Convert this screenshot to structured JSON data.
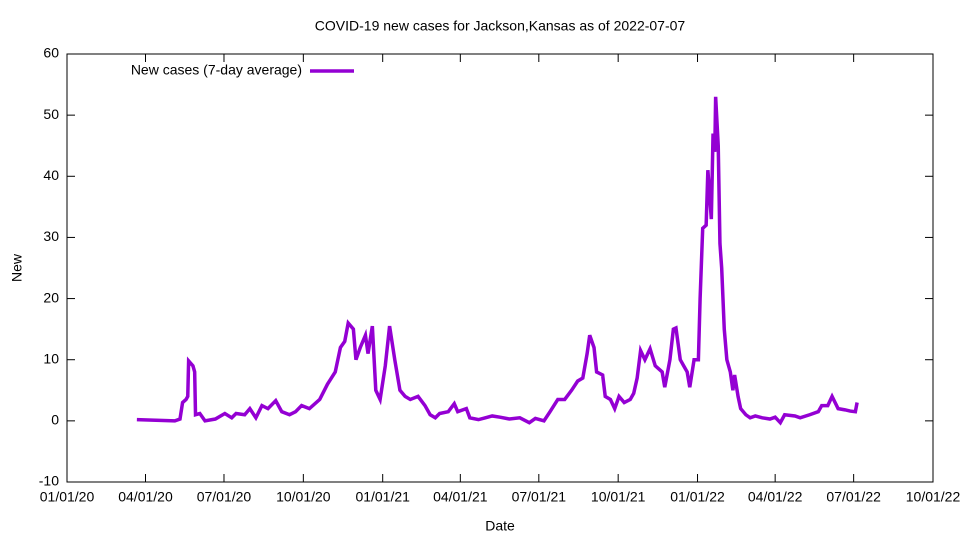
{
  "chart_data": {
    "type": "line",
    "title": "COVID-19 new cases for Jackson,Kansas as of 2022-07-07",
    "x_label": "Date",
    "y_label": "New",
    "legend": "top-left",
    "xlim": [
      "2020-01-01",
      "2022-10-01"
    ],
    "xticks": [
      {
        "value": "2020-01-01",
        "label": "01/01/20"
      },
      {
        "value": "2020-04-01",
        "label": "04/01/20"
      },
      {
        "value": "2020-07-01",
        "label": "07/01/20"
      },
      {
        "value": "2020-10-01",
        "label": "10/01/20"
      },
      {
        "value": "2021-01-01",
        "label": "01/01/21"
      },
      {
        "value": "2021-04-01",
        "label": "04/01/21"
      },
      {
        "value": "2021-07-01",
        "label": "07/01/21"
      },
      {
        "value": "2021-10-01",
        "label": "10/01/21"
      },
      {
        "value": "2022-01-01",
        "label": "01/01/22"
      },
      {
        "value": "2022-04-01",
        "label": "04/01/22"
      },
      {
        "value": "2022-07-01",
        "label": "07/01/22"
      },
      {
        "value": "2022-10-01",
        "label": "10/01/22"
      }
    ],
    "ylim": [
      -10,
      60
    ],
    "yticks": [
      -10,
      0,
      10,
      20,
      30,
      40,
      50,
      60
    ],
    "x": [
      "2020-03-22",
      "2020-05-05",
      "2020-05-11",
      "2020-05-14",
      "2020-05-18",
      "2020-05-20",
      "2020-05-21",
      "2020-05-26",
      "2020-05-28",
      "2020-05-29",
      "2020-06-03",
      "2020-06-09",
      "2020-06-21",
      "2020-07-02",
      "2020-07-10",
      "2020-07-15",
      "2020-07-25",
      "2020-07-31",
      "2020-08-07",
      "2020-08-14",
      "2020-08-21",
      "2020-08-30",
      "2020-09-06",
      "2020-09-15",
      "2020-09-22",
      "2020-09-29",
      "2020-10-08",
      "2020-10-20",
      "2020-10-29",
      "2020-11-07",
      "2020-11-13",
      "2020-11-18",
      "2020-11-22",
      "2020-11-28",
      "2020-12-01",
      "2020-12-06",
      "2020-12-12",
      "2020-12-15",
      "2020-12-20",
      "2020-12-24",
      "2020-12-29",
      "2021-01-04",
      "2021-01-09",
      "2021-01-15",
      "2021-01-21",
      "2021-01-27",
      "2021-02-02",
      "2021-02-11",
      "2021-02-19",
      "2021-02-25",
      "2021-03-03",
      "2021-03-08",
      "2021-03-18",
      "2021-03-25",
      "2021-03-29",
      "2021-04-08",
      "2021-04-12",
      "2021-04-22",
      "2021-04-30",
      "2021-05-08",
      "2021-05-17",
      "2021-05-28",
      "2021-06-09",
      "2021-06-20",
      "2021-06-27",
      "2021-07-07",
      "2021-07-14",
      "2021-07-23",
      "2021-07-31",
      "2021-08-08",
      "2021-08-15",
      "2021-08-21",
      "2021-08-26",
      "2021-08-29",
      "2021-09-03",
      "2021-09-06",
      "2021-09-13",
      "2021-09-16",
      "2021-09-22",
      "2021-09-27",
      "2021-10-02",
      "2021-10-08",
      "2021-10-15",
      "2021-10-19",
      "2021-10-23",
      "2021-10-27",
      "2021-11-01",
      "2021-11-07",
      "2021-11-13",
      "2021-11-21",
      "2021-11-24",
      "2021-11-30",
      "2021-12-04",
      "2021-12-07",
      "2021-12-12",
      "2021-12-16",
      "2021-12-20",
      "2021-12-23",
      "2021-12-28",
      "2022-01-02",
      "2022-01-04",
      "2022-01-07",
      "2022-01-11",
      "2022-01-13",
      "2022-01-17",
      "2022-01-19",
      "2022-01-21",
      "2022-01-22",
      "2022-01-25",
      "2022-01-27",
      "2022-01-29",
      "2022-02-01",
      "2022-02-04",
      "2022-02-08",
      "2022-02-11",
      "2022-02-13",
      "2022-02-17",
      "2022-02-20",
      "2022-02-26",
      "2022-03-03",
      "2022-03-09",
      "2022-03-17",
      "2022-03-26",
      "2022-04-01",
      "2022-04-07",
      "2022-04-12",
      "2022-04-24",
      "2022-04-30",
      "2022-05-11",
      "2022-05-21",
      "2022-05-25",
      "2022-06-01",
      "2022-06-06",
      "2022-06-13",
      "2022-06-21",
      "2022-06-27",
      "2022-07-03",
      "2022-07-05"
    ],
    "series": [
      {
        "name": "New cases (7-day average)",
        "color": "#9400d3",
        "values": [
          0.2,
          0,
          0.3,
          3,
          3.5,
          4,
          9.8,
          9,
          8,
          1,
          1.2,
          0,
          0.3,
          1.2,
          0.5,
          1.2,
          1,
          2,
          0.5,
          2.5,
          2,
          3.3,
          1.5,
          1,
          1.5,
          2.5,
          2,
          3.5,
          6,
          8,
          12,
          13,
          16,
          15,
          10,
          12,
          14,
          11,
          15.5,
          5,
          3.5,
          9,
          15.5,
          10,
          5,
          4,
          3.5,
          4,
          2.5,
          1,
          0.5,
          1.2,
          1.5,
          2.8,
          1.5,
          2,
          0.5,
          0.2,
          0.5,
          0.8,
          0.6,
          0.3,
          0.5,
          -0.3,
          0.4,
          0,
          1.5,
          3.5,
          3.5,
          5,
          6.5,
          7,
          11,
          14,
          12,
          8,
          7.5,
          4,
          3.5,
          2,
          4,
          3,
          3.5,
          4.5,
          7,
          11.5,
          10,
          11.8,
          9,
          8,
          5.5,
          10,
          15,
          15.2,
          10,
          9,
          8,
          5.5,
          10,
          10,
          20,
          31.5,
          32,
          41,
          33,
          47,
          44,
          53,
          45,
          29,
          25,
          15,
          10,
          8,
          5,
          7.5,
          4,
          2,
          1,
          0.5,
          0.8,
          0.5,
          0.3,
          0.6,
          -0.3,
          1,
          0.8,
          0.5,
          1,
          1.5,
          2.5,
          2.5,
          4,
          2,
          1.8,
          1.6,
          1.5,
          3
        ]
      }
    ]
  }
}
